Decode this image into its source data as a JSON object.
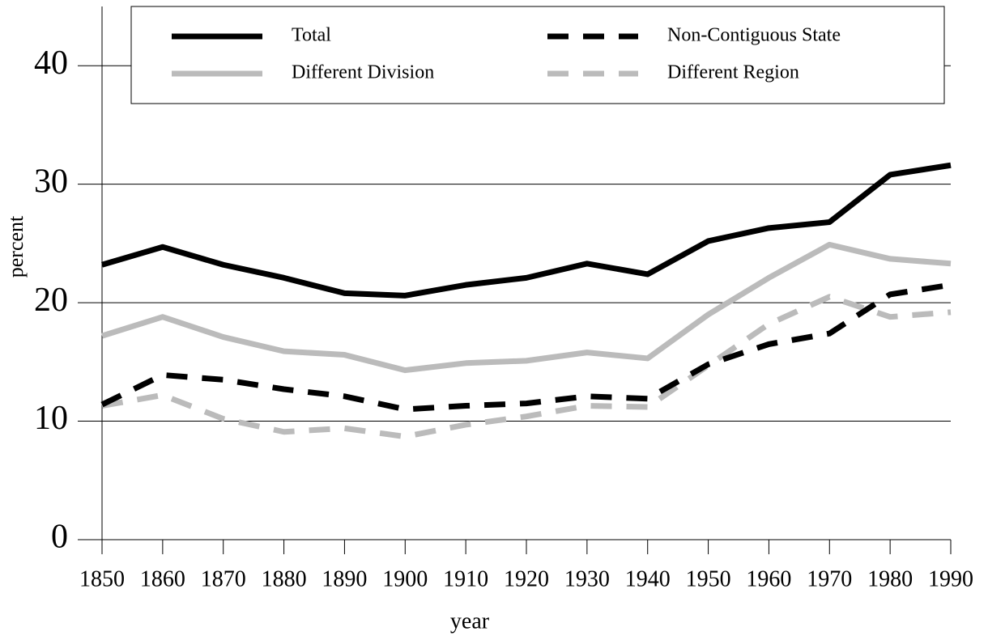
{
  "chart_data": {
    "type": "line",
    "x_label": "year",
    "y_label": "percent",
    "x": [
      1850,
      1860,
      1870,
      1880,
      1890,
      1900,
      1910,
      1920,
      1930,
      1940,
      1950,
      1960,
      1970,
      1980,
      1990
    ],
    "xlim": [
      1850,
      1990
    ],
    "xticks": [
      1850,
      1860,
      1870,
      1880,
      1890,
      1900,
      1910,
      1920,
      1930,
      1940,
      1950,
      1960,
      1970,
      1980,
      1990
    ],
    "ylim": [
      0,
      45
    ],
    "yticks": [
      0,
      10,
      20,
      30,
      40
    ],
    "grid": true,
    "series": [
      {
        "name": "Total",
        "color": "#000000",
        "dashed": false,
        "values": [
          23.2,
          24.7,
          23.2,
          22.1,
          20.8,
          20.6,
          21.5,
          22.1,
          23.3,
          22.4,
          25.2,
          26.3,
          26.8,
          30.8,
          31.6
        ]
      },
      {
        "name": "Non-Contiguous State",
        "color": "#000000",
        "dashed": true,
        "values": [
          11.4,
          13.9,
          13.5,
          12.7,
          12.1,
          11.0,
          11.3,
          11.5,
          12.1,
          11.9,
          14.8,
          16.5,
          17.4,
          20.7,
          21.5
        ]
      },
      {
        "name": "Different Division",
        "color": "#bbbbbb",
        "dashed": false,
        "values": [
          17.2,
          18.8,
          17.1,
          15.9,
          15.6,
          14.3,
          14.9,
          15.1,
          15.8,
          15.3,
          19.0,
          22.1,
          24.9,
          23.7,
          23.3
        ]
      },
      {
        "name": "Different Region",
        "color": "#bbbbbb",
        "dashed": true,
        "values": [
          11.3,
          12.2,
          10.2,
          9.1,
          9.4,
          8.7,
          9.7,
          10.4,
          11.3,
          11.2,
          14.7,
          18.2,
          20.5,
          18.8,
          19.2
        ]
      }
    ]
  }
}
